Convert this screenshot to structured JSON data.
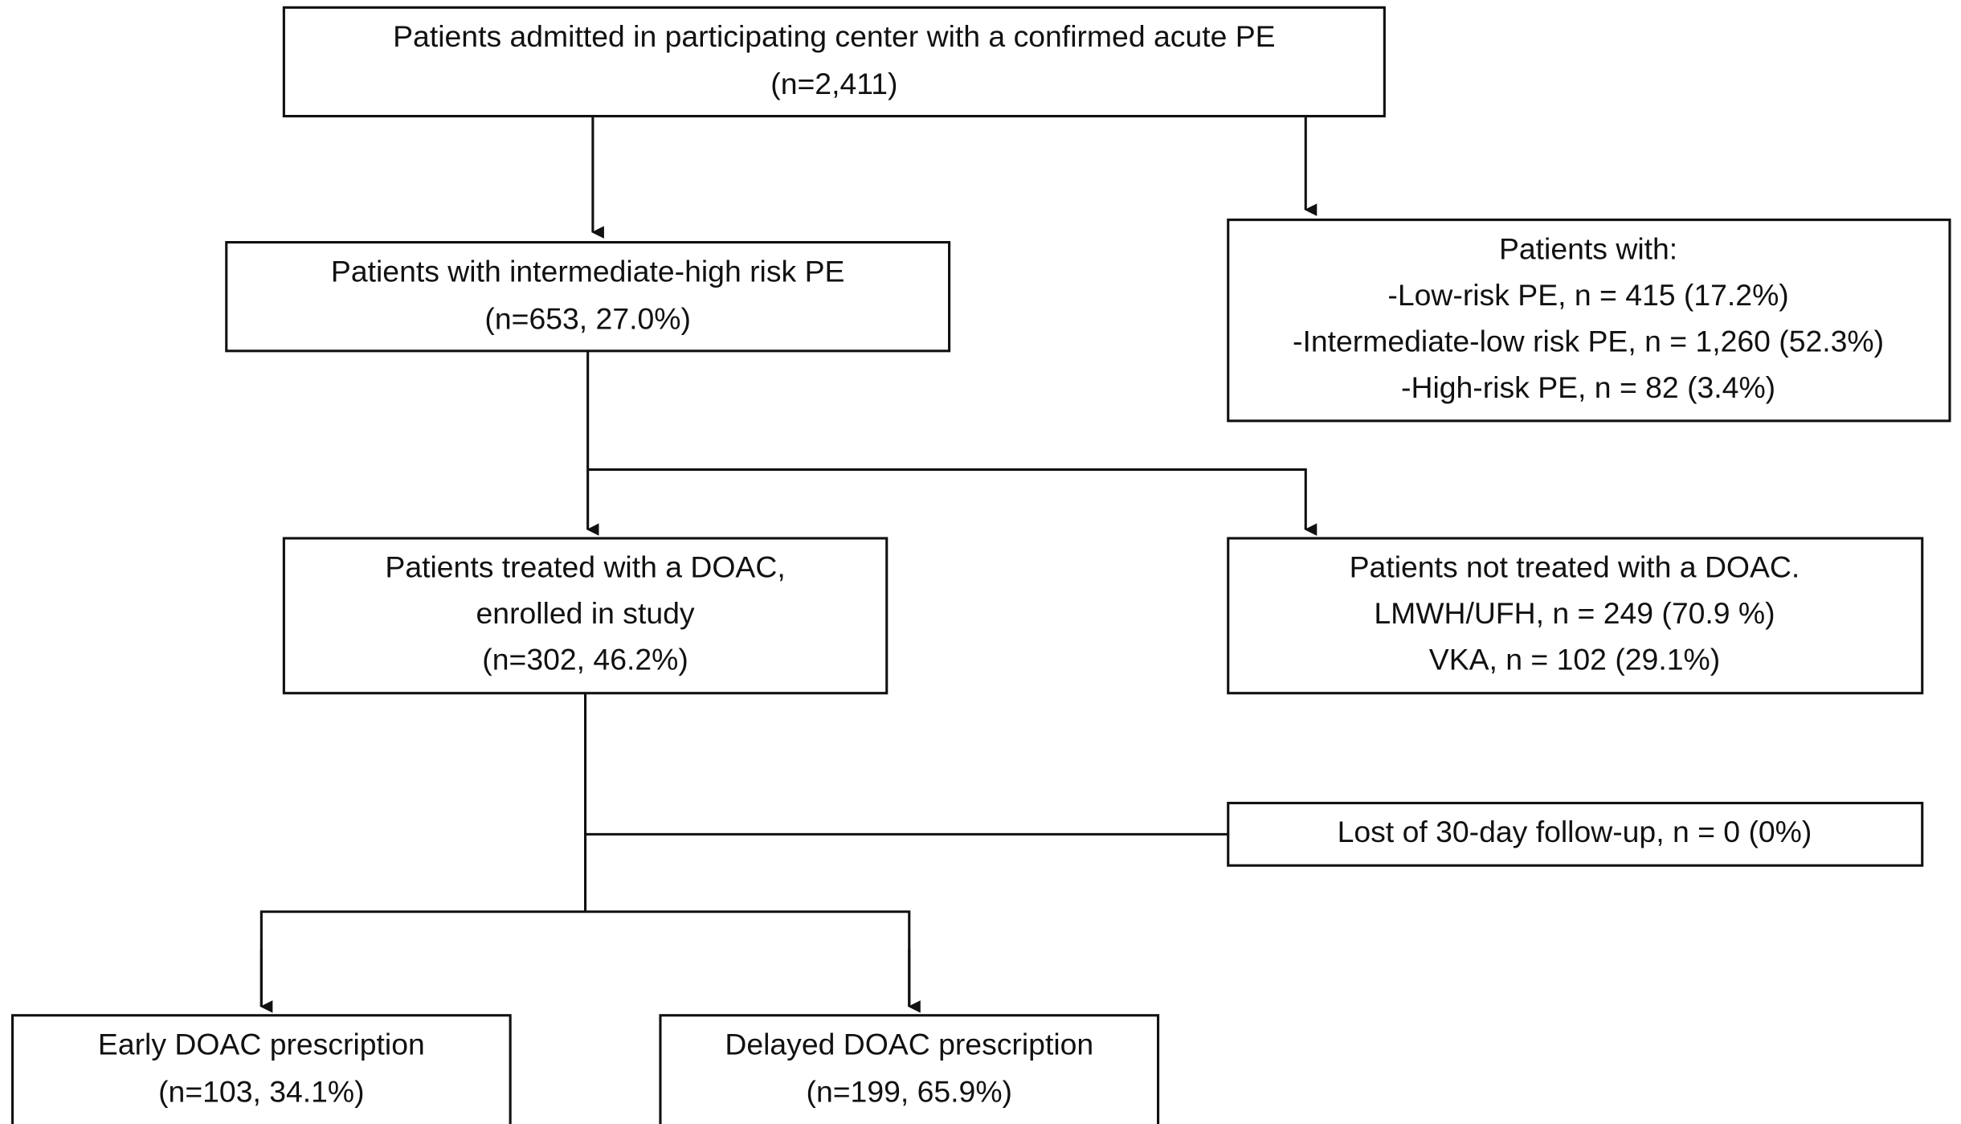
{
  "nodes": [
    {
      "lines": [
        "Patients admitted in participating center with a confirmed acute PE",
        "(n=2,411)"
      ]
    },
    {
      "lines": [
        "Patients with intermediate-high risk PE",
        "(n=653, 27.0%)"
      ]
    },
    {
      "lines": [
        "Patients with:",
        "-Low-risk PE, n = 415 (17.2%)",
        "-Intermediate-low risk PE, n = 1,260 (52.3%)",
        "-High-risk PE, n = 82 (3.4%)"
      ]
    },
    {
      "lines": [
        "Patients treated with a DOAC,",
        "enrolled in study",
        "(n=302, 46.2%)"
      ]
    },
    {
      "lines": [
        "Patients not treated with a DOAC.",
        "LMWH/UFH, n = 249 (70.9 %)",
        "VKA, n = 102 (29.1%)"
      ]
    },
    {
      "lines": [
        "Lost of 30-day follow-up, n = 0 (0%)"
      ]
    },
    {
      "lines": [
        "Early DOAC prescription",
        "(n=103, 34.1%)"
      ]
    },
    {
      "lines": [
        "Delayed DOAC prescription",
        "(n=199, 65.9%)"
      ]
    }
  ]
}
